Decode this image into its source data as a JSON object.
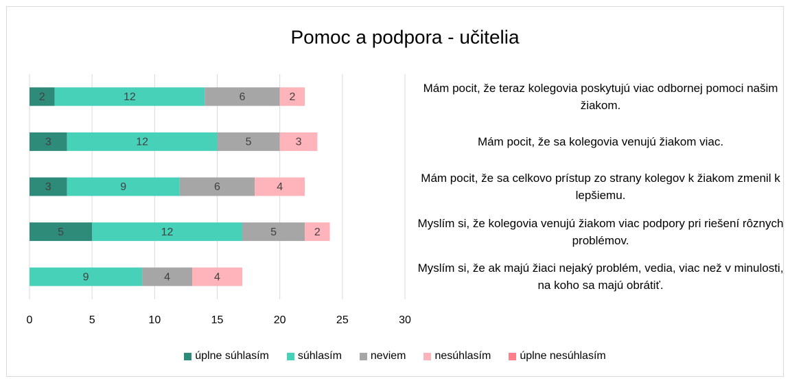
{
  "chart_data": {
    "type": "stacked-bar-horizontal",
    "title": "Pomoc a podpora - učitelia",
    "categories": [
      "Mám pocit, že teraz kolegovia poskytujú viac odbornej pomoci našim žiakom.",
      "Mám pocit, že sa kolegovia venujú žiakom viac.",
      "Mám pocit, že sa celkovo prístup zo strany kolegov k žiakom zmenil k lepšiemu.",
      "Myslím si, že kolegovia venujú žiakom viac podpory pri riešení rôznych problémov.",
      "Myslím si, že ak majú žiaci nejaký problém, vedia, viac než v minulosti, na koho sa majú obrátiť."
    ],
    "series": [
      {
        "name": "úplne súhlasím",
        "color": "#2e8b7a",
        "values": [
          2,
          3,
          3,
          5,
          0
        ]
      },
      {
        "name": "súhlasím",
        "color": "#48d1b9",
        "values": [
          12,
          12,
          9,
          12,
          9
        ]
      },
      {
        "name": "neviem",
        "color": "#a6a6a6",
        "values": [
          6,
          5,
          6,
          5,
          4
        ]
      },
      {
        "name": "nesúhlasím",
        "color": "#ffb3ba",
        "values": [
          2,
          3,
          4,
          2,
          4
        ]
      },
      {
        "name": "úplne nesúhlasím",
        "color": "#ff7f8a",
        "values": [
          0,
          0,
          0,
          0,
          0
        ]
      }
    ],
    "xlim": [
      0,
      30
    ],
    "xticks": [
      0,
      5,
      10,
      15,
      20,
      25,
      30
    ],
    "grid": true
  }
}
